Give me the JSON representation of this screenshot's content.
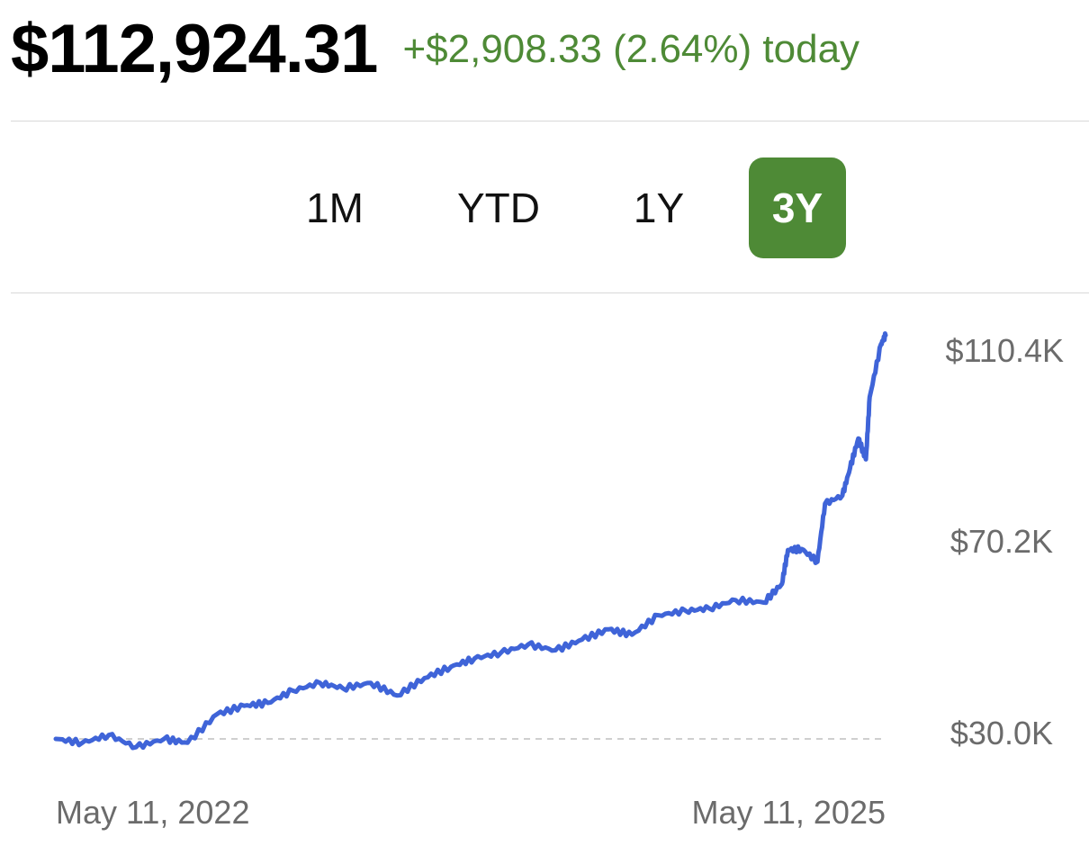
{
  "header": {
    "balance": "$112,924.31",
    "change_today": "+$2,908.33 (2.64%) today"
  },
  "tabs": [
    {
      "label": "1M",
      "active": false
    },
    {
      "label": "YTD",
      "active": false
    },
    {
      "label": "1Y",
      "active": false
    },
    {
      "label": "3Y",
      "active": true
    }
  ],
  "colors": {
    "accent_green": "#4e8a36",
    "line_blue": "#3f64d8",
    "baseline_gray": "#cfcfcf"
  },
  "chart_data": {
    "type": "line",
    "title": "",
    "ylim": [
      30000,
      110400
    ],
    "y_ticks": [
      "$110.4K",
      "$70.2K",
      "$30.0K"
    ],
    "y_tick_values": [
      110400,
      70200,
      30000
    ],
    "x_tick_labels": [
      "May 11, 2022",
      "May 11, 2025"
    ],
    "baseline_value": 30000,
    "series": [
      {
        "x": [
          "2022-05-11",
          "2022-06-15",
          "2022-07-20",
          "2022-08-25",
          "2022-10-01",
          "2022-11-01",
          "2022-12-10",
          "2023-01-15",
          "2023-02-15",
          "2023-03-20",
          "2023-04-25",
          "2023-05-25",
          "2023-07-01",
          "2023-08-05",
          "2023-09-10",
          "2023-10-15",
          "2023-11-15",
          "2023-12-20",
          "2024-01-25",
          "2024-03-01",
          "2024-04-05",
          "2024-05-10",
          "2024-06-10",
          "2024-07-15",
          "2024-08-20",
          "2024-09-20",
          "2024-10-25",
          "2024-12-01",
          "2024-12-25",
          "2025-01-02",
          "2025-01-20",
          "2025-02-10",
          "2025-02-20",
          "2025-03-15",
          "2025-03-25",
          "2025-04-05",
          "2025-04-15",
          "2025-04-20",
          "2025-05-05",
          "2025-05-11"
        ],
        "y": [
          30000,
          29200,
          30800,
          28300,
          30000,
          29200,
          35100,
          36800,
          37400,
          39900,
          41500,
          40400,
          41500,
          38900,
          42500,
          44800,
          46500,
          47700,
          49400,
          48200,
          50400,
          52500,
          51400,
          55400,
          56300,
          56800,
          58500,
          58000,
          61800,
          68800,
          69000,
          66400,
          78300,
          80000,
          85600,
          91700,
          87400,
          100200,
          111100,
          112900
        ]
      }
    ]
  }
}
